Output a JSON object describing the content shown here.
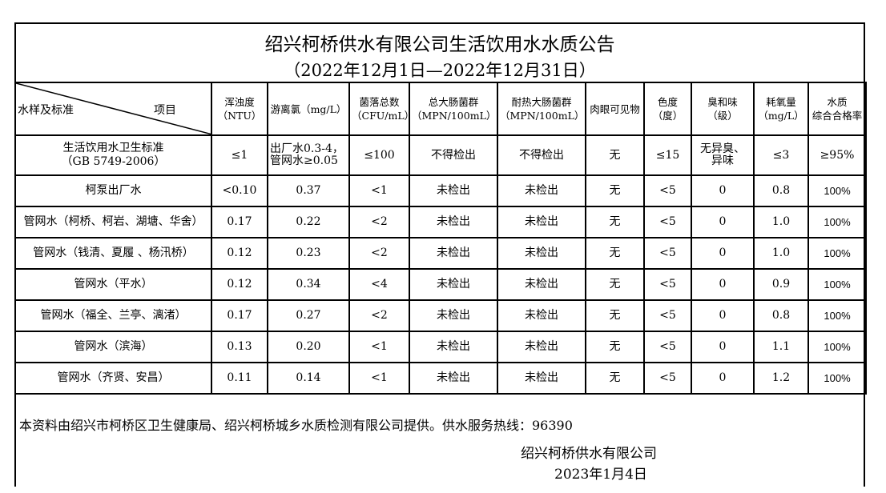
{
  "title": "绍兴柯桥供水有限公司生活饮用水水质公告",
  "subtitle": "（2022年12月1日—2022年12月31日）",
  "header": {
    "corner_left": "水样及标准",
    "corner_right": "项目",
    "columns": [
      [
        "浑浊度",
        "（NTU）"
      ],
      [
        "游离氯（mg/L）",
        ""
      ],
      [
        "菌落总数",
        "（CFU/mL）"
      ],
      [
        "总大肠菌群",
        "（MPN/100mL）"
      ],
      [
        "耐热大肠菌群",
        "（MPN/100mL）"
      ],
      [
        "肉眼可见物",
        ""
      ],
      [
        "色度",
        "（度）"
      ],
      [
        "臭和味",
        "（级）"
      ],
      [
        "耗氧量",
        "（mg/L）"
      ],
      [
        "水质",
        "综合合格率"
      ]
    ]
  },
  "standard": {
    "name": "生活饮用水卫生标准",
    "code": "（GB 5749-2006）",
    "values": [
      "≤1",
      "出厂水0.3-4，",
      "≤100",
      "不得检出",
      "不得检出",
      "无",
      "≤15",
      "无异臭、",
      "≤3",
      "≥95%"
    ],
    "chlorine_line2": "管网水≥0.05",
    "odor_line2": "异味"
  },
  "rows": [
    {
      "name": "柯泵出厂水",
      "values": [
        "<0.10",
        "0.37",
        "<1",
        "未检出",
        "未检出",
        "无",
        "<5",
        "0",
        "0.8",
        "100%"
      ]
    },
    {
      "name": "管网水（柯桥、柯岩、湖塘、华舍）",
      "values": [
        "0.17",
        "0.22",
        "<2",
        "未检出",
        "未检出",
        "无",
        "<5",
        "0",
        "1.0",
        "100%"
      ]
    },
    {
      "name": "管网水（钱清、夏履 、杨汛桥）",
      "values": [
        "0.12",
        "0.23",
        "<2",
        "未检出",
        "未检出",
        "无",
        "<5",
        "0",
        "1.0",
        "100%"
      ]
    },
    {
      "name": "管网水（平水）",
      "values": [
        "0.12",
        "0.34",
        "<4",
        "未检出",
        "未检出",
        "无",
        "<5",
        "0",
        "0.9",
        "100%"
      ]
    },
    {
      "name": "管网水（福全、兰亭、漓渚）",
      "values": [
        "0.17",
        "0.27",
        "<2",
        "未检出",
        "未检出",
        "无",
        "<5",
        "0",
        "0.8",
        "100%"
      ]
    },
    {
      "name": "管网水（滨海）",
      "values": [
        "0.13",
        "0.20",
        "<1",
        "未检出",
        "未检出",
        "无",
        "<5",
        "0",
        "1.1",
        "100%"
      ]
    },
    {
      "name": "管网水（齐贤、安昌）",
      "values": [
        "0.11",
        "0.14",
        "<1",
        "未检出",
        "未检出",
        "无",
        "<5",
        "0",
        "1.2",
        "100%"
      ]
    }
  ],
  "footer": {
    "note": "本资料由绍兴市柯桥区卫生健康局、绍兴柯桥城乡水质检测有限公司提供。供水服务热线：96390",
    "company": "绍兴柯桥供水有限公司",
    "date": "2023年1月4日"
  }
}
